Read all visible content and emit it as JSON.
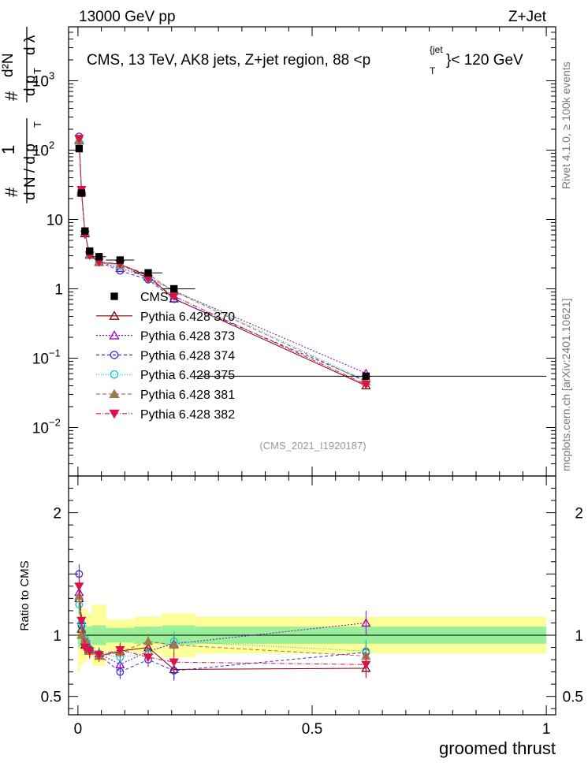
{
  "header": {
    "left": "13000 GeV pp",
    "right": "Z+Jet"
  },
  "side_labels": {
    "rivet": "Rivet 4.1.0, ≥ 100k events",
    "mcplots": "mcplots.cern.ch [arXiv:2401.10621]"
  },
  "chart_data": {
    "type": "line",
    "title": "CMS, 13 TeV, AK8 jets, Z+jet region, 88 <p",
    "title_sup": "{jet",
    "title_sub": "T",
    "title_tail": "}< 120 GeV",
    "watermark": "(CMS_2021_I1920187)",
    "xlabel": "groomed thrust",
    "ylabel": {
      "num_left": "1",
      "den_left": "d N / d p",
      "den_left_sub": "T",
      "num_right": "d²N",
      "den_right": "d p",
      "den_right_sub": "T",
      "den_right_tail": "d λ",
      "hash": "#"
    },
    "ratio_ylabel": "Ratio to CMS",
    "xlim": [
      -0.02,
      1.02
    ],
    "ylim_main": [
      0.002,
      6000
    ],
    "ylim_ratio": [
      0.35,
      2.3
    ],
    "x_ticks": [
      {
        "v": 0,
        "label": "0"
      },
      {
        "v": 0.5,
        "label": "0.5"
      },
      {
        "v": 1,
        "label": "1"
      }
    ],
    "y_ticks_main": [
      {
        "v": 0.01,
        "base": "10",
        "exp": "−2"
      },
      {
        "v": 0.1,
        "base": "10",
        "exp": "−1"
      },
      {
        "v": 1,
        "base": "1",
        "exp": ""
      },
      {
        "v": 10,
        "base": "10",
        "exp": ""
      },
      {
        "v": 100,
        "base": "10",
        "exp": "2"
      },
      {
        "v": 1000,
        "base": "10",
        "exp": "3"
      }
    ],
    "y_ticks_ratio": [
      {
        "v": 0.5,
        "label": "0.5"
      },
      {
        "v": 1,
        "label": "1"
      },
      {
        "v": 2,
        "label": "2"
      }
    ],
    "bins": [
      {
        "lo": 0.0,
        "hi": 0.005,
        "x": 0.0025
      },
      {
        "lo": 0.005,
        "hi": 0.01,
        "x": 0.0075
      },
      {
        "lo": 0.01,
        "hi": 0.02,
        "x": 0.015
      },
      {
        "lo": 0.02,
        "hi": 0.03,
        "x": 0.025
      },
      {
        "lo": 0.03,
        "hi": 0.06,
        "x": 0.045
      },
      {
        "lo": 0.06,
        "hi": 0.12,
        "x": 0.09
      },
      {
        "lo": 0.12,
        "hi": 0.18,
        "x": 0.15
      },
      {
        "lo": 0.18,
        "hi": 0.25,
        "x": 0.205
      },
      {
        "lo": 0.25,
        "hi": 1.0,
        "x": 0.615
      }
    ],
    "data": {
      "name": "CMS",
      "values": [
        105,
        24,
        6.8,
        3.5,
        2.9,
        2.6,
        1.7,
        1.0,
        0.055
      ],
      "band_inner": [
        0.1,
        0.09,
        0.08,
        0.07,
        0.08,
        0.06,
        0.07,
        0.08,
        0.07
      ],
      "band_outer": [
        0.3,
        0.25,
        0.22,
        0.18,
        0.25,
        0.13,
        0.15,
        0.18,
        0.15
      ]
    },
    "series": [
      {
        "name": "Pythia 6.428 370",
        "color": "#800000",
        "dash": "",
        "marker": "tri-open",
        "ratio": [
          1.3,
          1.05,
          0.92,
          0.88,
          0.83,
          0.87,
          0.9,
          0.72,
          0.73
        ],
        "ratio_err": [
          0.08,
          0.05,
          0.06,
          0.06,
          0.05,
          0.06,
          0.06,
          0.08,
          0.08
        ]
      },
      {
        "name": "Pythia 6.428 373",
        "color": "#9900cc",
        "dash": "2,2",
        "marker": "tri-open",
        "ratio": [
          1.35,
          1.12,
          0.95,
          0.9,
          0.85,
          0.76,
          0.87,
          0.93,
          1.1
        ],
        "ratio_err": [
          0.08,
          0.05,
          0.06,
          0.06,
          0.05,
          0.06,
          0.06,
          0.08,
          0.1
        ]
      },
      {
        "name": "Pythia 6.428 374",
        "color": "#3a2bd6",
        "dash": "4,3",
        "marker": "circle-open",
        "ratio": [
          1.5,
          1.08,
          0.95,
          0.88,
          0.84,
          0.7,
          0.8,
          0.71,
          0.86
        ],
        "ratio_err": [
          0.08,
          0.05,
          0.06,
          0.06,
          0.05,
          0.06,
          0.06,
          0.08,
          0.09
        ]
      },
      {
        "name": "Pythia 6.428 375",
        "color": "#00cccc",
        "dash": "1,2",
        "marker": "circle-open",
        "ratio": [
          1.25,
          1.1,
          0.97,
          0.89,
          0.85,
          0.82,
          0.85,
          0.95,
          0.87
        ],
        "ratio_err": [
          0.08,
          0.05,
          0.06,
          0.06,
          0.05,
          0.06,
          0.06,
          0.08,
          0.09
        ]
      },
      {
        "name": "Pythia 6.428 381",
        "color": "#a0784a",
        "dash": "5,3",
        "marker": "tri-filled",
        "ratio": [
          1.32,
          1.0,
          0.96,
          0.87,
          0.83,
          0.86,
          0.95,
          0.92,
          0.83
        ],
        "ratio_err": [
          0.08,
          0.05,
          0.06,
          0.06,
          0.05,
          0.06,
          0.06,
          0.08,
          0.09
        ]
      },
      {
        "name": "Pythia 6.428 382",
        "color": "#dd1144",
        "dash": "6,2,1,2",
        "marker": "tri-down-filled",
        "ratio": [
          1.4,
          1.12,
          0.9,
          0.87,
          0.84,
          0.88,
          0.82,
          0.78,
          0.76
        ],
        "ratio_err": [
          0.08,
          0.05,
          0.06,
          0.06,
          0.05,
          0.06,
          0.06,
          0.08,
          0.09
        ]
      }
    ]
  }
}
